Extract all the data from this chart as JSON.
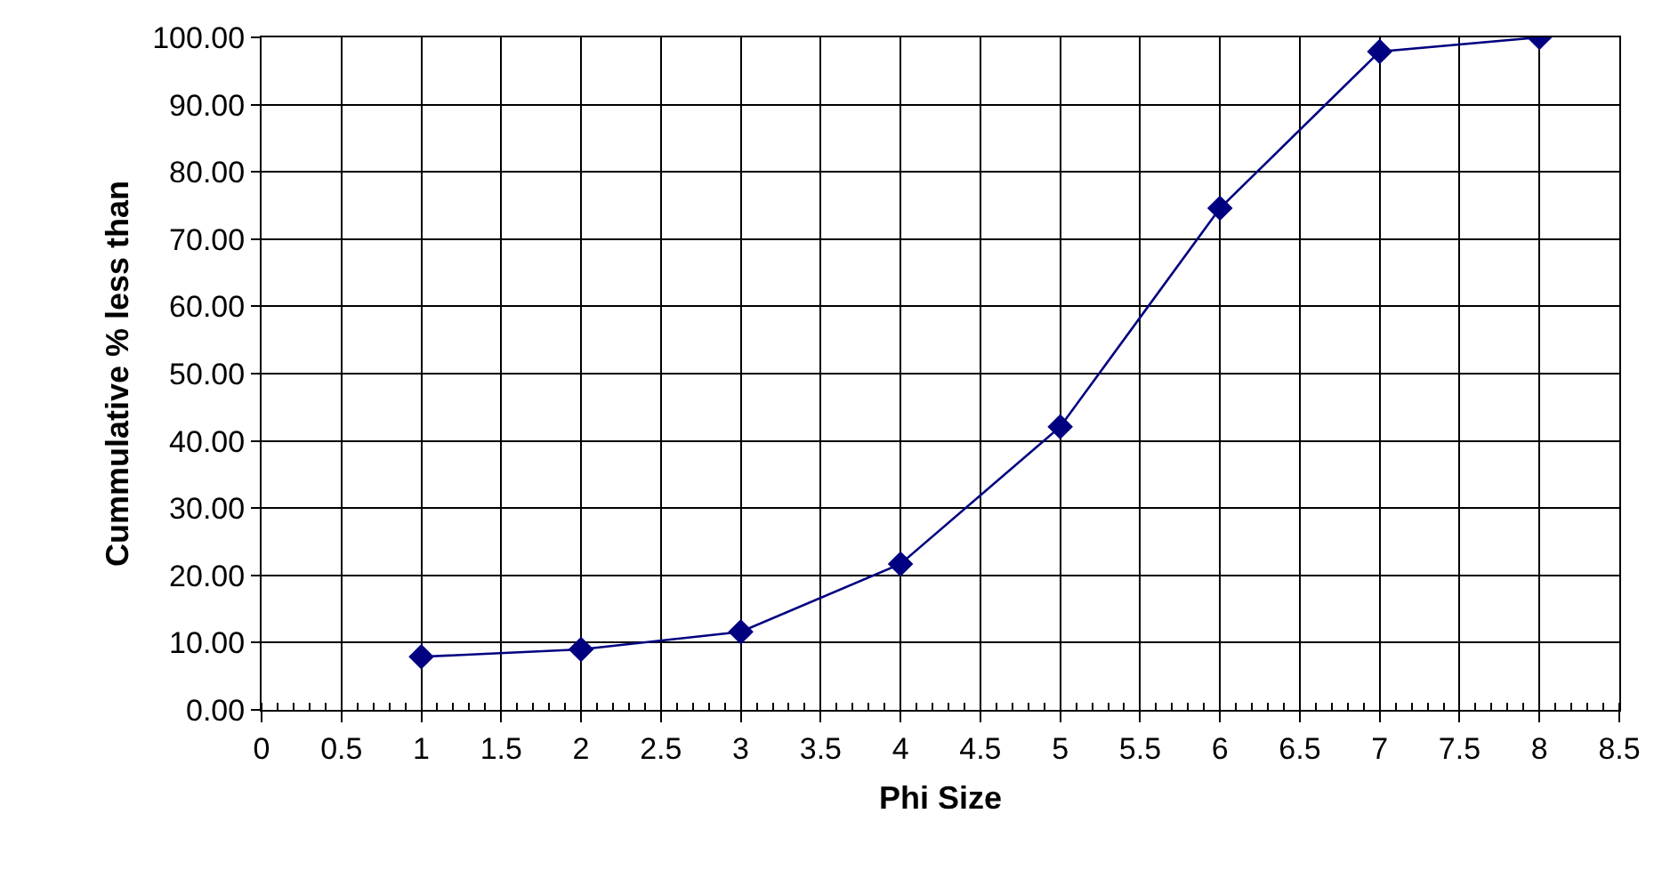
{
  "chart_data": {
    "type": "line",
    "xlabel": "Phi Size",
    "ylabel": "Cummulative % less than",
    "x": [
      1,
      2,
      3,
      4,
      5,
      6,
      7,
      8
    ],
    "series": [
      {
        "color": "#000080",
        "values": [
          7.9,
          9.0,
          11.6,
          21.7,
          42.1,
          74.6,
          97.9,
          100
        ]
      }
    ],
    "xlim": [
      0,
      8.5
    ],
    "xticks": [
      0,
      0.5,
      1,
      1.5,
      2,
      2.5,
      3,
      3.5,
      4,
      4.5,
      5,
      5.5,
      6,
      6.5,
      7,
      7.5,
      8,
      8.5
    ],
    "ylim": [
      0,
      100
    ],
    "yticks": [
      {
        "value": 0,
        "label": "0.00"
      },
      {
        "value": 10,
        "label": "10.00"
      },
      {
        "value": 20,
        "label": "20.00"
      },
      {
        "value": 30,
        "label": "30.00"
      },
      {
        "value": 40,
        "label": "40.00"
      },
      {
        "value": 50,
        "label": "50.00"
      },
      {
        "value": 60,
        "label": "60.00"
      },
      {
        "value": 70,
        "label": "70.00"
      },
      {
        "value": 80,
        "label": "80.00"
      },
      {
        "value": 90,
        "label": "90.00"
      },
      {
        "value": 100,
        "label": "100.00"
      }
    ],
    "grid": true,
    "marker": "diamond",
    "line_style": "solid"
  }
}
